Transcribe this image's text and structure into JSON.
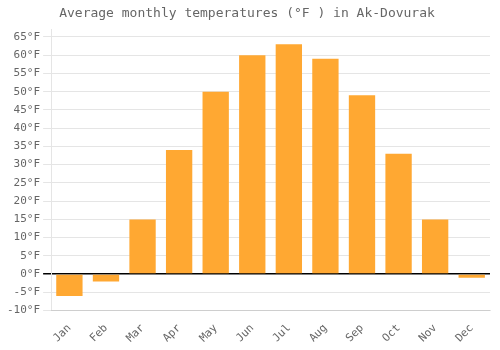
{
  "chart_data": {
    "type": "bar",
    "title": "Average monthly temperatures (°F ) in Ak-Dovurak",
    "categories": [
      "Jan",
      "Feb",
      "Mar",
      "Apr",
      "May",
      "Jun",
      "Jul",
      "Aug",
      "Sep",
      "Oct",
      "Nov",
      "Dec"
    ],
    "values": [
      -6,
      -2,
      15,
      34,
      50,
      60,
      63,
      59,
      49,
      33,
      15,
      -1
    ],
    "color": "#FFA832",
    "ylim": [
      -10,
      67
    ],
    "yticks": [
      {
        "value": -10,
        "label": "-10°F"
      },
      {
        "value": -5,
        "label": "-5°F"
      },
      {
        "value": 0,
        "label": "0°F"
      },
      {
        "value": 5,
        "label": "5°F"
      },
      {
        "value": 10,
        "label": "10°F"
      },
      {
        "value": 15,
        "label": "15°F"
      },
      {
        "value": 20,
        "label": "20°F"
      },
      {
        "value": 25,
        "label": "25°F"
      },
      {
        "value": 30,
        "label": "30°F"
      },
      {
        "value": 35,
        "label": "35°F"
      },
      {
        "value": 40,
        "label": "40°F"
      },
      {
        "value": 45,
        "label": "45°F"
      },
      {
        "value": 50,
        "label": "50°F"
      },
      {
        "value": 55,
        "label": "55°F"
      },
      {
        "value": 60,
        "label": "60°F"
      },
      {
        "value": 65,
        "label": "65°F"
      }
    ],
    "grid": true
  }
}
